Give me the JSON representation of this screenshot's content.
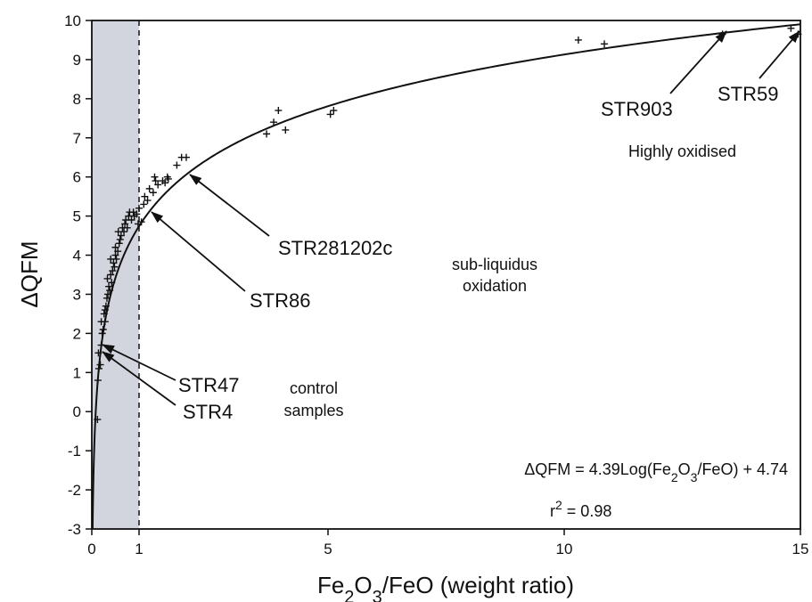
{
  "chart_data": {
    "type": "scatter",
    "title": "",
    "xlabel": "Fe2O3/FeO (weight ratio)",
    "ylabel": "ΔQFM",
    "xlim": [
      0,
      15
    ],
    "ylim": [
      -3,
      10
    ],
    "x_ticks": [
      0,
      1,
      5,
      10,
      15
    ],
    "y_ticks": [
      -3,
      -2,
      -1,
      0,
      1,
      2,
      3,
      4,
      5,
      6,
      7,
      8,
      9,
      10
    ],
    "grid": false,
    "legend": "none",
    "shaded_region": {
      "x_from": 0,
      "x_to": 1,
      "color": "#d3d5de"
    },
    "reference_line": {
      "x": 1,
      "style": "dashed"
    },
    "fit_curve": {
      "a": 4.39,
      "b": 4.74,
      "form": "a*log10(x)+b"
    },
    "equation_parts": {
      "lhs": "ΔQFM = 4.39Log(Fe",
      "sub1": "2",
      "mid1": "O",
      "sub2": "3",
      "rhs": "/FeO) + 4.74"
    },
    "r2_parts": {
      "base": "r",
      "sup": "2",
      "rest": " = 0.98"
    },
    "points": [
      [
        0.12,
        -0.2
      ],
      [
        0.13,
        0.8
      ],
      [
        0.15,
        1.1
      ],
      [
        0.14,
        1.5
      ],
      [
        0.18,
        1.2
      ],
      [
        0.2,
        1.7
      ],
      [
        0.22,
        2.0
      ],
      [
        0.2,
        2.3
      ],
      [
        0.24,
        2.1
      ],
      [
        0.26,
        2.5
      ],
      [
        0.28,
        2.3
      ],
      [
        0.3,
        2.7
      ],
      [
        0.32,
        2.9
      ],
      [
        0.28,
        2.6
      ],
      [
        0.34,
        3.0
      ],
      [
        0.36,
        3.2
      ],
      [
        0.33,
        3.4
      ],
      [
        0.38,
        3.1
      ],
      [
        0.4,
        3.5
      ],
      [
        0.42,
        3.3
      ],
      [
        0.44,
        3.6
      ],
      [
        0.46,
        3.8
      ],
      [
        0.4,
        3.9
      ],
      [
        0.48,
        3.7
      ],
      [
        0.5,
        4.0
      ],
      [
        0.52,
        3.9
      ],
      [
        0.5,
        4.2
      ],
      [
        0.55,
        4.1
      ],
      [
        0.58,
        4.3
      ],
      [
        0.6,
        4.4
      ],
      [
        0.56,
        4.6
      ],
      [
        0.62,
        4.5
      ],
      [
        0.65,
        4.7
      ],
      [
        0.68,
        4.6
      ],
      [
        0.7,
        4.8
      ],
      [
        0.72,
        4.9
      ],
      [
        0.75,
        4.7
      ],
      [
        0.78,
        5.0
      ],
      [
        0.8,
        5.1
      ],
      [
        0.84,
        4.9
      ],
      [
        0.88,
        5.1
      ],
      [
        0.9,
        5.0
      ],
      [
        0.95,
        5.05
      ],
      [
        1.0,
        5.2
      ],
      [
        0.98,
        4.8
      ],
      [
        1.05,
        4.85
      ],
      [
        1.1,
        5.3
      ],
      [
        1.12,
        5.5
      ],
      [
        1.18,
        5.4
      ],
      [
        1.22,
        5.7
      ],
      [
        1.3,
        5.6
      ],
      [
        1.35,
        5.9
      ],
      [
        1.4,
        5.8
      ],
      [
        1.33,
        6.0
      ],
      [
        1.5,
        5.9
      ],
      [
        1.55,
        5.85
      ],
      [
        1.6,
        6.0
      ],
      [
        1.62,
        5.95
      ],
      [
        1.8,
        6.3
      ],
      [
        1.9,
        6.5
      ],
      [
        2.0,
        6.5
      ],
      [
        3.7,
        7.1
      ],
      [
        3.85,
        7.4
      ],
      [
        3.95,
        7.7
      ],
      [
        4.1,
        7.2
      ],
      [
        5.05,
        7.6
      ],
      [
        5.12,
        7.7
      ],
      [
        10.3,
        9.5
      ],
      [
        10.85,
        9.4
      ],
      [
        13.35,
        9.65
      ],
      [
        14.95,
        9.65
      ],
      [
        14.8,
        9.8
      ]
    ]
  },
  "annotations": {
    "str903": "STR903",
    "str59": "STR59",
    "highly_oxidised": "Highly oxidised",
    "str281202c": "STR281202c",
    "sub_liquidus_1": "sub-liquidus",
    "sub_liquidus_2": "oxidation",
    "str86": "STR86",
    "str47": "STR47",
    "str4": "STR4",
    "control_1": "control",
    "control_2": "samples"
  }
}
